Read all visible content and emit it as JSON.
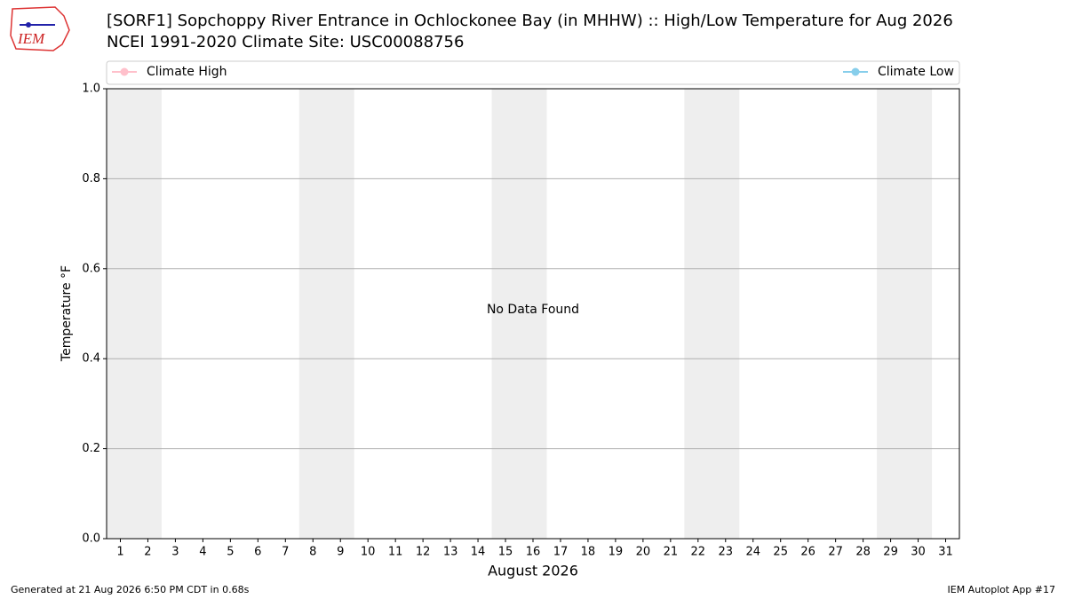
{
  "chart_data": {
    "type": "line",
    "title": "[SORF1] Sopchoppy River Entrance in Ochlockonee Bay (in MHHW) :: High/Low Temperature for Aug 2026",
    "subtitle": "NCEI 1991-2020 Climate Site: USC00088756",
    "x_label": "August 2026",
    "y_label": "Temperature °F",
    "annotation": "No Data Found",
    "x": [
      1,
      2,
      3,
      4,
      5,
      6,
      7,
      8,
      9,
      10,
      11,
      12,
      13,
      14,
      15,
      16,
      17,
      18,
      19,
      20,
      21,
      22,
      23,
      24,
      25,
      26,
      27,
      28,
      29,
      30,
      31
    ],
    "series": [
      {
        "name": "Climate High",
        "color": "#ffc0cb",
        "values": [
          null,
          null,
          null,
          null,
          null,
          null,
          null,
          null,
          null,
          null,
          null,
          null,
          null,
          null,
          null,
          null,
          null,
          null,
          null,
          null,
          null,
          null,
          null,
          null,
          null,
          null,
          null,
          null,
          null,
          null,
          null
        ]
      },
      {
        "name": "Climate Low",
        "color": "#87ceeb",
        "values": [
          null,
          null,
          null,
          null,
          null,
          null,
          null,
          null,
          null,
          null,
          null,
          null,
          null,
          null,
          null,
          null,
          null,
          null,
          null,
          null,
          null,
          null,
          null,
          null,
          null,
          null,
          null,
          null,
          null,
          null,
          null
        ]
      }
    ],
    "xlim": [
      0.5,
      31.5
    ],
    "xticks": [
      1,
      2,
      3,
      4,
      5,
      6,
      7,
      8,
      9,
      10,
      11,
      12,
      13,
      14,
      15,
      16,
      17,
      18,
      19,
      20,
      21,
      22,
      23,
      24,
      25,
      26,
      27,
      28,
      29,
      30,
      31
    ],
    "ylim": [
      0,
      1
    ],
    "yticks": [
      {
        "value": 0,
        "label": "0.0"
      },
      {
        "value": 0.2,
        "label": "0.2"
      },
      {
        "value": 0.4,
        "label": "0.4"
      },
      {
        "value": 0.6,
        "label": "0.6"
      },
      {
        "value": 0.8,
        "label": "0.8"
      },
      {
        "value": 1,
        "label": "1.0"
      }
    ],
    "grid": true,
    "shaded_ranges": [
      [
        0.5,
        2.5
      ],
      [
        7.5,
        9.5
      ],
      [
        14.5,
        16.5
      ],
      [
        21.5,
        23.5
      ],
      [
        28.5,
        30.5
      ]
    ],
    "shade_color": "#eeeeee"
  },
  "logo": "IEM",
  "footer": {
    "left": "Generated at 21 Aug 2026 6:50 PM CDT in 0.68s",
    "right": "IEM Autoplot App #17"
  }
}
